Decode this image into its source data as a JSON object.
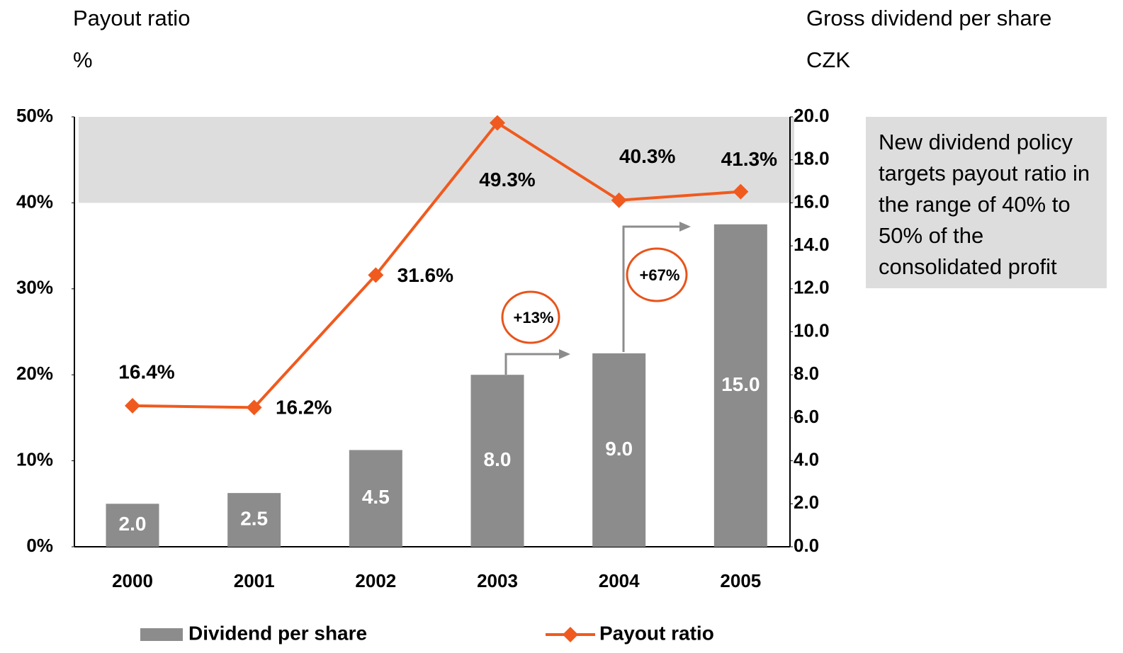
{
  "chart_data": {
    "type": "bar_line",
    "y_title": "Payout ratio",
    "y_unit": "%",
    "y2_title": "Gross dividend per share",
    "y2_unit": "CZK",
    "categories": [
      "2000",
      "2001",
      "2002",
      "2003",
      "2004",
      "2005"
    ],
    "series": [
      {
        "name": "Dividend per share",
        "type": "bar",
        "axis": "y2",
        "color": "#8c8c8c",
        "values": [
          2.0,
          2.5,
          4.5,
          8.0,
          9.0,
          15.0
        ],
        "value_labels": [
          "2.0",
          "2.5",
          "4.5",
          "8.0",
          "9.0",
          "15.0"
        ]
      },
      {
        "name": "Payout ratio",
        "type": "line",
        "axis": "y",
        "color": "#f05a1e",
        "values": [
          16.4,
          16.2,
          31.6,
          49.3,
          40.3,
          41.3
        ],
        "value_labels": [
          "16.4%",
          "16.2%",
          "31.6%",
          "49.3%",
          "40.3%",
          "41.3%"
        ]
      }
    ],
    "ylim": [
      0,
      50
    ],
    "yticks": [
      {
        "value": 0,
        "label": "0%"
      },
      {
        "value": 10,
        "label": "10%"
      },
      {
        "value": 20,
        "label": "20%"
      },
      {
        "value": 30,
        "label": "30%"
      },
      {
        "value": 40,
        "label": "40%"
      },
      {
        "value": 50,
        "label": "50%"
      }
    ],
    "y2lim": [
      0,
      20
    ],
    "y2ticks": [
      {
        "value": 0,
        "label": "0.0"
      },
      {
        "value": 2,
        "label": "2.0"
      },
      {
        "value": 4,
        "label": "4.0"
      },
      {
        "value": 6,
        "label": "6.0"
      },
      {
        "value": 8,
        "label": "8.0"
      },
      {
        "value": 10,
        "label": "10.0"
      },
      {
        "value": 12,
        "label": "12.0"
      },
      {
        "value": 14,
        "label": "14.0"
      },
      {
        "value": 16,
        "label": "16.0"
      },
      {
        "value": 18,
        "label": "18.0"
      },
      {
        "value": 20,
        "label": "20.0"
      }
    ],
    "highlight_range": [
      40,
      50
    ],
    "annotations": [
      "+13%",
      "+67%"
    ],
    "note": "New dividend policy targets payout ratio in the range of 40% to 50% of the consolidated profit"
  }
}
